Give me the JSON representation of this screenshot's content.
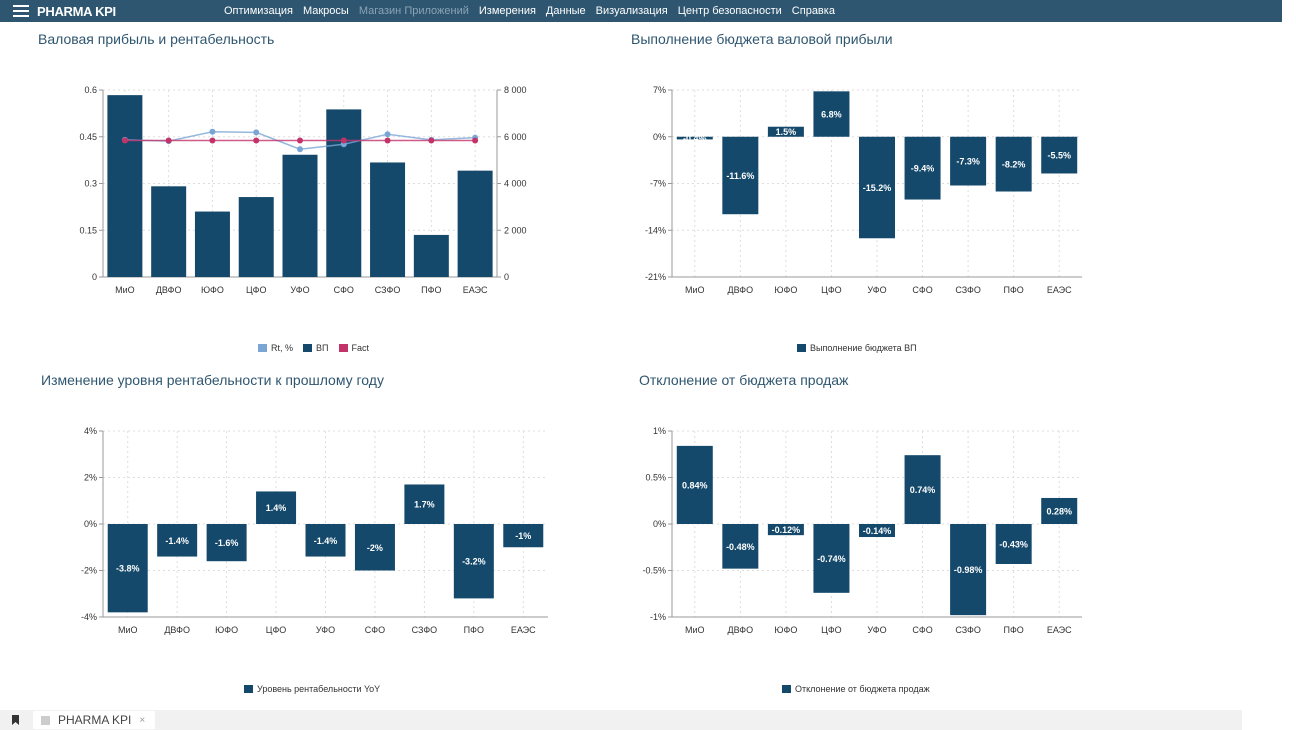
{
  "app": {
    "title": "PHARMA KPI"
  },
  "nav": {
    "items": [
      {
        "label": "Оптимизация",
        "disabled": false
      },
      {
        "label": "Макросы",
        "disabled": false
      },
      {
        "label": "Магазин Приложений",
        "disabled": true
      },
      {
        "label": "Измерения",
        "disabled": false
      },
      {
        "label": "Данные",
        "disabled": false
      },
      {
        "label": "Визуализация",
        "disabled": false
      },
      {
        "label": "Центр безопасности",
        "disabled": false
      },
      {
        "label": "Справка",
        "disabled": false
      }
    ]
  },
  "taskbar": {
    "tab_label": "PHARMA KPI",
    "close": "×"
  },
  "colors": {
    "nav": "#2f5670",
    "bar": "#15496b",
    "rt": "#7aa6d6",
    "fact": "#c2336a"
  },
  "chart_data": [
    {
      "type": "bar+line",
      "title": "Валовая прибыль и рентабельность",
      "categories": [
        "МиО",
        "ДВФО",
        "ЮФО",
        "ЦФО",
        "УФО",
        "СФО",
        "СЗФО",
        "ПФО",
        "ЕАЭС"
      ],
      "y_left": {
        "ticks": [
          "0",
          "0.15",
          "0.3",
          "0.45",
          "0.6"
        ],
        "range": [
          0,
          0.6
        ]
      },
      "y_right": {
        "ticks": [
          "0",
          "2 000",
          "4 000",
          "6 000",
          "8 000"
        ],
        "range": [
          0,
          8000
        ]
      },
      "series": [
        {
          "name": "Rt, %",
          "type": "line",
          "axis": "left",
          "values": [
            0.44,
            0.436,
            0.466,
            0.464,
            0.41,
            0.426,
            0.458,
            0.44,
            0.447
          ]
        },
        {
          "name": "ВП",
          "type": "bar",
          "axis": "right",
          "values": [
            7780,
            3880,
            2800,
            3420,
            5230,
            7170,
            4900,
            1800,
            4550
          ]
        },
        {
          "name": "Fact",
          "type": "line",
          "axis": "left",
          "values": [
            0.438,
            0.438,
            0.438,
            0.438,
            0.438,
            0.438,
            0.438,
            0.438,
            0.438
          ]
        }
      ],
      "grid": true,
      "legend": "bottom"
    },
    {
      "type": "bar",
      "title": "Выполнение бюджета валовой прибыли",
      "categories": [
        "МиО",
        "ДВФО",
        "ЮФО",
        "ЦФО",
        "УФО",
        "СФО",
        "СЗФО",
        "ПФО",
        "ЕАЭС"
      ],
      "y": {
        "ticks": [
          "-21%",
          "-14%",
          "-7%",
          "0%",
          "7%"
        ],
        "range": [
          -21,
          7
        ]
      },
      "series": [
        {
          "name": "Выполнение бюджета ВП",
          "values": [
            -0.4,
            -11.6,
            1.5,
            6.8,
            -15.2,
            -9.4,
            -7.3,
            -8.2,
            -5.5
          ],
          "labels": [
            "-0.4%",
            "-11.6%",
            "1.5%",
            "6.8%",
            "-15.2%",
            "-9.4%",
            "-7.3%",
            "-8.2%",
            "-5.5%"
          ]
        }
      ],
      "grid": true,
      "legend": "bottom"
    },
    {
      "type": "bar",
      "title": "Изменение уровня рентабельности к прошлому году",
      "categories": [
        "МиО",
        "ДВФО",
        "ЮФО",
        "ЦФО",
        "УФО",
        "СФО",
        "СЗФО",
        "ПФО",
        "ЕАЭС"
      ],
      "y": {
        "ticks": [
          "-4%",
          "-2%",
          "0%",
          "2%",
          "4%"
        ],
        "range": [
          -4,
          4
        ]
      },
      "series": [
        {
          "name": "Уровень рентабельности YoY",
          "values": [
            -3.8,
            -1.4,
            -1.6,
            1.4,
            -1.4,
            -2,
            1.7,
            -3.2,
            -1
          ],
          "labels": [
            "-3.8%",
            "-1.4%",
            "-1.6%",
            "1.4%",
            "-1.4%",
            "-2%",
            "1.7%",
            "-3.2%",
            "-1%"
          ]
        }
      ],
      "grid": true,
      "legend": "bottom"
    },
    {
      "type": "bar",
      "title": "Отклонение от бюджета продаж",
      "categories": [
        "МиО",
        "ДВФО",
        "ЮФО",
        "ЦФО",
        "УФО",
        "СФО",
        "СЗФО",
        "ПФО",
        "ЕАЭС"
      ],
      "y": {
        "ticks": [
          "-1%",
          "-0.5%",
          "0%",
          "0.5%",
          "1%"
        ],
        "range": [
          -1,
          1
        ]
      },
      "series": [
        {
          "name": "Отклонение от бюджета продаж",
          "values": [
            0.84,
            -0.48,
            -0.12,
            -0.74,
            -0.14,
            0.74,
            -0.98,
            -0.43,
            0.28
          ],
          "labels": [
            "0.84%",
            "-0.48%",
            "-0.12%",
            "-0.74%",
            "-0.14%",
            "0.74%",
            "-0.98%",
            "-0.43%",
            "0.28%"
          ]
        }
      ],
      "grid": true,
      "legend": "bottom"
    }
  ]
}
